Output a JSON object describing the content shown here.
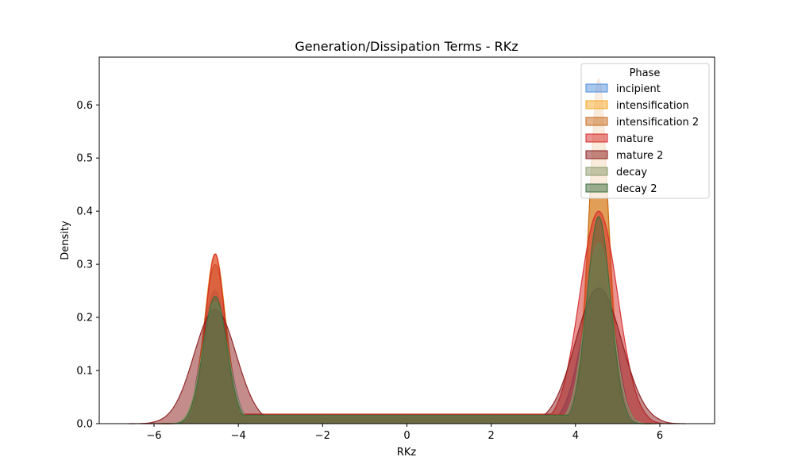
{
  "chart_data": {
    "type": "area",
    "title": "Generation/Dissipation Terms - RKz",
    "xlabel": "RKz",
    "ylabel": "Density",
    "xlim": [
      -7.3,
      7.3
    ],
    "ylim": [
      0,
      0.69
    ],
    "xticks": [
      -6,
      -4,
      -2,
      0,
      2,
      4,
      6
    ],
    "xtick_labels": [
      "−6",
      "−4",
      "−2",
      "0",
      "2",
      "4",
      "6"
    ],
    "yticks": [
      0.0,
      0.1,
      0.2,
      0.3,
      0.4,
      0.5,
      0.6
    ],
    "ytick_labels": [
      "0.0",
      "0.1",
      "0.2",
      "0.3",
      "0.4",
      "0.5",
      "0.6"
    ],
    "grid": false,
    "legend": {
      "title": "Phase",
      "placement": "top-right"
    },
    "series": [
      {
        "name": "incipient",
        "color": "#4f8fdb",
        "peaks": [
          {
            "center": -4.55,
            "height": 0.25,
            "width": 0.3
          },
          {
            "center": 4.55,
            "height": 0.27,
            "width": 0.4
          }
        ],
        "baseline": 0.015,
        "range": [
          -5.6,
          5.6
        ]
      },
      {
        "name": "intensification",
        "color": "#f5a623",
        "peaks": [
          {
            "center": -4.55,
            "height": 0.32,
            "width": 0.25
          },
          {
            "center": 4.55,
            "height": 0.6,
            "width": 0.25
          }
        ],
        "baseline": 0.017,
        "range": [
          -5.8,
          5.8
        ]
      },
      {
        "name": "intensification 2",
        "color": "#c8691c",
        "peaks": [
          {
            "center": -4.55,
            "height": 0.3,
            "width": 0.27
          },
          {
            "center": 4.55,
            "height": 0.65,
            "width": 0.23
          }
        ],
        "baseline": 0.016,
        "range": [
          -5.9,
          5.9
        ]
      },
      {
        "name": "mature",
        "color": "#d62728",
        "peaks": [
          {
            "center": -4.55,
            "height": 0.32,
            "width": 0.23
          },
          {
            "center": 4.55,
            "height": 0.4,
            "width": 0.45
          }
        ],
        "baseline": 0.018,
        "range": [
          -6.3,
          6.3
        ]
      },
      {
        "name": "mature 2",
        "color": "#8b1a1a",
        "peaks": [
          {
            "center": -4.55,
            "height": 0.215,
            "width": 0.5
          },
          {
            "center": 4.55,
            "height": 0.255,
            "width": 0.55
          }
        ],
        "baseline": 0.016,
        "range": [
          -6.6,
          6.6
        ]
      },
      {
        "name": "decay",
        "color": "#8a9a6b",
        "peaks": [
          {
            "center": -4.55,
            "height": 0.23,
            "width": 0.3
          },
          {
            "center": 4.55,
            "height": 0.34,
            "width": 0.32
          }
        ],
        "baseline": 0.015,
        "range": [
          -5.9,
          5.9
        ]
      },
      {
        "name": "decay 2",
        "color": "#3d6b3d",
        "peaks": [
          {
            "center": -4.55,
            "height": 0.24,
            "width": 0.28
          },
          {
            "center": 4.55,
            "height": 0.39,
            "width": 0.28
          }
        ],
        "baseline": 0.016,
        "range": [
          -5.8,
          5.8
        ]
      }
    ]
  }
}
